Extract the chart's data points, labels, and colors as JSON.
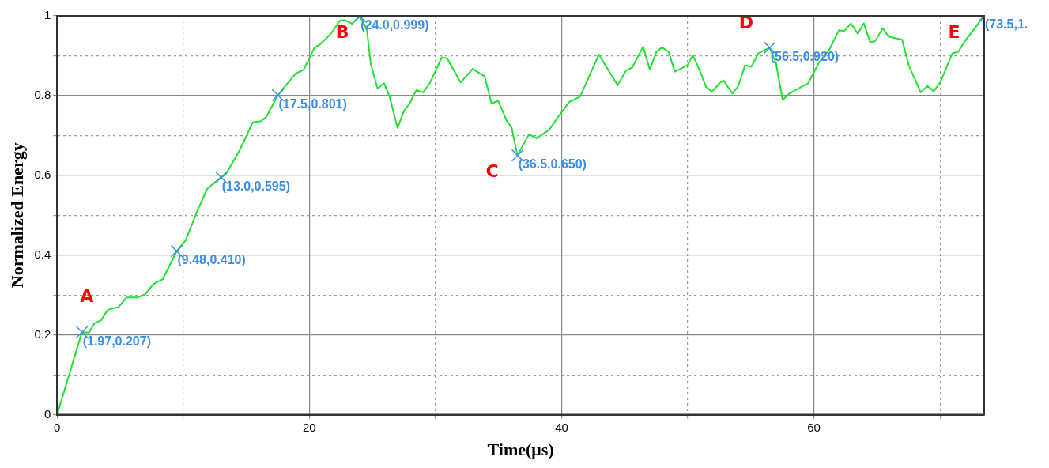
{
  "chart_data": {
    "type": "line",
    "xlabel": "Time(μs)",
    "ylabel": "Normalized Energy",
    "xlim": [
      0,
      73.5
    ],
    "ylim": [
      0,
      1
    ],
    "xticks": [
      0,
      {
        "value": 10,
        "label": null
      },
      20,
      {
        "value": 30,
        "label": null
      },
      40,
      {
        "value": 50,
        "label": null
      },
      60,
      {
        "value": 70,
        "label": null
      }
    ],
    "yticks": [
      0,
      {
        "value": 0.1,
        "label": null
      },
      0.2,
      {
        "value": 0.3,
        "label": null
      },
      0.4,
      {
        "value": 0.5,
        "label": null
      },
      0.6,
      {
        "value": 0.7,
        "label": null
      },
      0.8,
      {
        "value": 0.9,
        "label": null
      },
      1
    ],
    "grid": true,
    "legend": false,
    "series": [
      {
        "type": "line",
        "color": "#22e032",
        "marker": "none",
        "x": [
          0,
          1.97,
          2.53,
          2.96,
          3.49,
          4.02,
          4.87,
          5.51,
          6.36,
          7.0,
          7.64,
          8.38,
          9.48,
          10.19,
          11.04,
          11.89,
          13.0,
          13.38,
          14.44,
          15.51,
          16.15,
          16.57,
          17.5,
          18.27,
          18.91,
          19.55,
          20.4,
          20.8,
          21.68,
          22.42,
          22.85,
          23.38,
          24.0,
          24.55,
          24.87,
          25.4,
          25.93,
          26.36,
          26.99,
          27.52,
          27.95,
          28.48,
          29.02,
          29.55,
          30.5,
          30.93,
          31.99,
          32.95,
          33.9,
          34.44,
          34.97,
          35.61,
          36.04,
          36.5,
          37.41,
          38.01,
          39.01,
          39.55,
          40.6,
          41.46,
          42.95,
          43.8,
          44.44,
          45.08,
          45.61,
          46.46,
          46.99,
          47.52,
          47.95,
          48.48,
          48.97,
          49.97,
          50.4,
          50.92,
          51.46,
          51.92,
          52.52,
          52.84,
          53.54,
          54.01,
          54.54,
          55.03,
          55.6,
          56.5,
          56.99,
          57.52,
          58.05,
          59.54,
          60.39,
          61.24,
          61.98,
          62.41,
          62.94,
          63.48,
          63.96,
          64.47,
          64.86,
          65.46,
          65.92,
          66.99,
          67.52,
          68.47,
          69.0,
          69.5,
          70.01,
          70.98,
          71.45,
          71.98,
          73.5
        ],
        "values": [
          0,
          0.207,
          0.206,
          0.229,
          0.237,
          0.263,
          0.27,
          0.294,
          0.294,
          0.302,
          0.328,
          0.34,
          0.41,
          0.437,
          0.505,
          0.566,
          0.595,
          0.603,
          0.661,
          0.733,
          0.736,
          0.746,
          0.801,
          0.831,
          0.855,
          0.865,
          0.92,
          0.927,
          0.954,
          0.988,
          0.989,
          0.98,
          0.999,
          0.967,
          0.879,
          0.818,
          0.831,
          0.797,
          0.719,
          0.763,
          0.78,
          0.814,
          0.808,
          0.831,
          0.896,
          0.893,
          0.833,
          0.867,
          0.848,
          0.78,
          0.787,
          0.739,
          0.719,
          0.65,
          0.703,
          0.693,
          0.714,
          0.739,
          0.784,
          0.797,
          0.903,
          0.859,
          0.826,
          0.862,
          0.871,
          0.923,
          0.865,
          0.91,
          0.921,
          0.91,
          0.86,
          0.876,
          0.901,
          0.865,
          0.821,
          0.81,
          0.831,
          0.838,
          0.805,
          0.824,
          0.876,
          0.872,
          0.906,
          0.92,
          0.882,
          0.789,
          0.805,
          0.831,
          0.882,
          0.916,
          0.964,
          0.962,
          0.981,
          0.955,
          0.981,
          0.933,
          0.937,
          0.969,
          0.948,
          0.94,
          0.876,
          0.808,
          0.824,
          0.811,
          0.833,
          0.906,
          0.91,
          0.937,
          1.0
        ]
      },
      {
        "type": "scatter",
        "color": "#3a8ee6",
        "marker": "cross",
        "x": [
          1.97,
          9.48,
          13.0,
          17.5,
          24.0,
          36.5,
          56.5,
          73.5
        ],
        "values": [
          0.207,
          0.41,
          0.595,
          0.801,
          0.999,
          0.65,
          0.92,
          1.0
        ],
        "value_labels": [
          "(1.97,0.207)",
          "(9.48,0.410)",
          "(13.0,0.595)",
          "(17.5,0.801)",
          "(24.0,0.999)",
          "(36.5,0.650)",
          "(56.5,0.920)",
          "(73.5,1."
        ]
      }
    ],
    "annotations": [
      {
        "text": "A",
        "x": 1.97,
        "y": 0.207
      },
      {
        "text": "B",
        "x": 24.0,
        "y": 0.999
      },
      {
        "text": "C",
        "x": 36.5,
        "y": 0.65
      },
      {
        "text": "D",
        "x": 56.5,
        "y": 0.92
      },
      {
        "text": "E",
        "x": 73.5,
        "y": 1.0
      }
    ]
  }
}
